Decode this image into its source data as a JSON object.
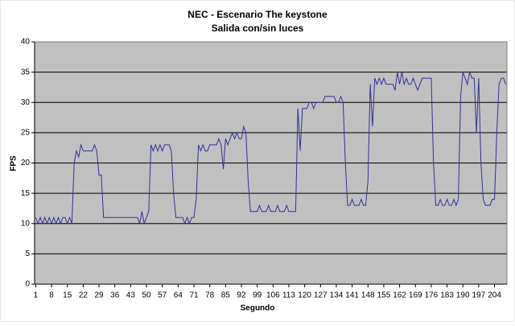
{
  "chart_data": {
    "type": "line",
    "title": "NEC - Escenario The keystone",
    "subtitle": "Salida con/sin luces",
    "x_label": "Segundo",
    "y_label": "FPS",
    "color": "#333399",
    "grid": true,
    "xlim": [
      0.5,
      209.5
    ],
    "ylim": [
      0,
      40
    ],
    "yticks": [
      0,
      5,
      10,
      15,
      20,
      25,
      30,
      35,
      40
    ],
    "xticks": [
      1,
      8,
      15,
      22,
      29,
      36,
      43,
      50,
      57,
      64,
      71,
      78,
      85,
      92,
      99,
      106,
      113,
      120,
      127,
      134,
      141,
      148,
      155,
      162,
      169,
      176,
      183,
      190,
      197,
      204
    ],
    "x": [
      1,
      2,
      3,
      4,
      5,
      6,
      7,
      8,
      9,
      10,
      11,
      12,
      13,
      14,
      15,
      16,
      17,
      18,
      19,
      20,
      21,
      22,
      23,
      24,
      25,
      26,
      27,
      28,
      29,
      30,
      31,
      32,
      33,
      34,
      35,
      36,
      37,
      38,
      39,
      40,
      41,
      42,
      43,
      44,
      45,
      46,
      47,
      48,
      49,
      50,
      51,
      52,
      53,
      54,
      55,
      56,
      57,
      58,
      59,
      60,
      61,
      62,
      63,
      64,
      65,
      66,
      67,
      68,
      69,
      70,
      71,
      72,
      73,
      74,
      75,
      76,
      77,
      78,
      79,
      80,
      81,
      82,
      83,
      84,
      85,
      86,
      87,
      88,
      89,
      90,
      91,
      92,
      93,
      94,
      95,
      96,
      97,
      98,
      99,
      100,
      101,
      102,
      103,
      104,
      105,
      106,
      107,
      108,
      109,
      110,
      111,
      112,
      113,
      114,
      115,
      116,
      117,
      118,
      119,
      120,
      121,
      122,
      123,
      124,
      125,
      126,
      127,
      128,
      129,
      130,
      131,
      132,
      133,
      134,
      135,
      136,
      137,
      138,
      139,
      140,
      141,
      142,
      143,
      144,
      145,
      146,
      147,
      148,
      149,
      150,
      151,
      152,
      153,
      154,
      155,
      156,
      157,
      158,
      159,
      160,
      161,
      162,
      163,
      164,
      165,
      166,
      167,
      168,
      169,
      170,
      171,
      172,
      173,
      174,
      175,
      176,
      177,
      178,
      179,
      180,
      181,
      182,
      183,
      184,
      185,
      186,
      187,
      188,
      189,
      190,
      191,
      192,
      193,
      194,
      195,
      196,
      197,
      198,
      199,
      200,
      201,
      202,
      203,
      204,
      205,
      206,
      207,
      208,
      209
    ],
    "values": [
      11,
      10,
      11,
      10,
      11,
      10,
      11,
      10,
      11,
      10,
      11,
      10,
      11,
      11,
      10,
      11,
      10,
      20,
      22,
      21,
      23,
      22,
      22,
      22,
      22,
      22,
      23,
      22,
      18,
      18,
      11,
      11,
      11,
      11,
      11,
      11,
      11,
      11,
      11,
      11,
      11,
      11,
      11,
      11,
      11,
      11,
      10,
      12,
      10,
      11,
      12,
      23,
      22,
      23,
      22,
      23,
      22,
      23,
      23,
      23,
      22,
      15,
      11,
      11,
      11,
      11,
      10,
      11,
      10,
      11,
      11,
      14,
      23,
      22,
      23,
      22,
      22,
      23,
      23,
      23,
      23,
      24,
      23,
      19,
      24,
      23,
      24,
      25,
      24,
      25,
      24,
      24,
      26,
      25,
      17,
      12,
      12,
      12,
      12,
      13,
      12,
      12,
      12,
      13,
      12,
      12,
      12,
      13,
      12,
      12,
      12,
      13,
      12,
      12,
      12,
      12,
      29,
      22,
      29,
      29,
      29,
      30,
      30,
      29,
      30,
      30,
      30,
      30,
      31,
      31,
      31,
      31,
      31,
      30,
      30,
      31,
      30,
      20,
      13,
      13,
      14,
      13,
      13,
      13,
      14,
      13,
      13,
      17,
      33,
      26,
      34,
      33,
      34,
      33,
      34,
      33,
      33,
      33,
      33,
      32,
      35,
      33,
      35,
      33,
      34,
      33,
      33,
      34,
      33,
      32,
      33,
      34,
      34,
      34,
      34,
      34,
      20,
      13,
      13,
      14,
      13,
      13,
      14,
      13,
      13,
      14,
      13,
      14,
      31,
      35,
      34,
      33,
      35,
      34,
      34,
      25,
      34,
      20,
      14,
      13,
      13,
      13,
      14,
      14,
      25,
      33,
      34,
      34,
      33
    ]
  }
}
